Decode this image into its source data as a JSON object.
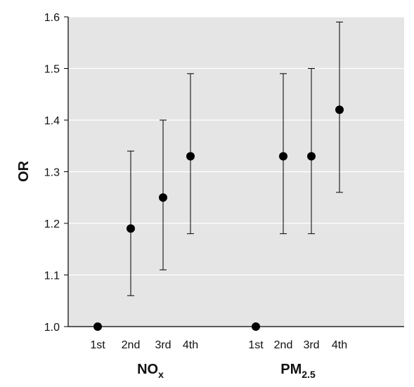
{
  "chart_data": {
    "type": "scatter",
    "ylabel": "OR",
    "ylim": [
      1.0,
      1.6
    ],
    "yticks": [
      "1.0",
      "1.1",
      "1.2",
      "1.3",
      "1.4",
      "1.5",
      "1.6"
    ],
    "grid": true,
    "groups": [
      {
        "label": "NO",
        "label_sub": "x",
        "points": [
          {
            "category": "1st",
            "or": 1.0,
            "lower": 1.0,
            "upper": 1.0
          },
          {
            "category": "2nd",
            "or": 1.19,
            "lower": 1.06,
            "upper": 1.34
          },
          {
            "category": "3rd",
            "or": 1.25,
            "lower": 1.11,
            "upper": 1.4
          },
          {
            "category": "4th",
            "or": 1.33,
            "lower": 1.18,
            "upper": 1.49
          }
        ]
      },
      {
        "label": "PM",
        "label_sub": "2.5",
        "points": [
          {
            "category": "1st",
            "or": 1.0,
            "lower": 1.0,
            "upper": 1.0
          },
          {
            "category": "2nd",
            "or": 1.33,
            "lower": 1.18,
            "upper": 1.49
          },
          {
            "category": "3rd",
            "or": 1.33,
            "lower": 1.18,
            "upper": 1.5
          },
          {
            "category": "4th",
            "or": 1.42,
            "lower": 1.26,
            "upper": 1.59
          }
        ]
      }
    ],
    "colors": {
      "plot_bg": "#e5e5e5",
      "grid": "#ffffff",
      "marker": "#000000"
    }
  }
}
